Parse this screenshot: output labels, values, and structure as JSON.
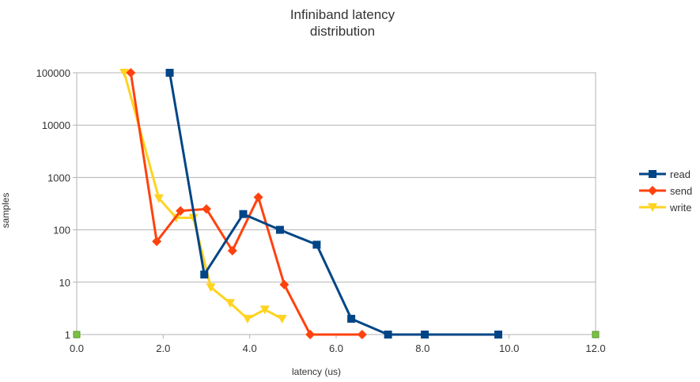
{
  "chart_data": {
    "type": "scatter",
    "title_lines": [
      "Infiniband latency",
      "distribution"
    ],
    "xlabel": "latency (us)",
    "ylabel": "samples",
    "xlim": [
      0,
      12
    ],
    "ylim": [
      1,
      100000
    ],
    "y_scale": "log",
    "grid": true,
    "legend_position": "right",
    "x_ticks": [
      "0.0",
      "2.0",
      "4.0",
      "6.0",
      "8.0",
      "10.0",
      "12.0"
    ],
    "y_ticks": [
      "1",
      "10",
      "100",
      "1000",
      "10000",
      "100000"
    ],
    "series": [
      {
        "name": "read",
        "color": "#004586",
        "marker": "square",
        "points": [
          [
            2.15,
            100000
          ],
          [
            2.95,
            14
          ],
          [
            3.85,
            200
          ],
          [
            4.7,
            100
          ],
          [
            5.55,
            52
          ],
          [
            6.35,
            2
          ],
          [
            7.2,
            1
          ],
          [
            8.05,
            1
          ],
          [
            9.75,
            1
          ]
        ]
      },
      {
        "name": "send",
        "color": "#ff420e",
        "marker": "diamond",
        "points": [
          [
            1.25,
            100000
          ],
          [
            1.85,
            60
          ],
          [
            2.4,
            230
          ],
          [
            3.0,
            250
          ],
          [
            3.6,
            40
          ],
          [
            4.2,
            420
          ],
          [
            4.8,
            9
          ],
          [
            5.4,
            1
          ],
          [
            6.6,
            1
          ]
        ]
      },
      {
        "name": "write",
        "color": "#ffd320",
        "marker": "triangle-down",
        "points": [
          [
            1.1,
            100000
          ],
          [
            1.9,
            400
          ],
          [
            2.3,
            170
          ],
          [
            2.7,
            170
          ],
          [
            3.1,
            8
          ],
          [
            3.55,
            4
          ],
          [
            3.95,
            2
          ],
          [
            4.35,
            3
          ],
          [
            4.75,
            2
          ]
        ]
      },
      {
        "name": "",
        "color": "#7ac142",
        "marker": "square-small",
        "points": [
          [
            0.0,
            1
          ],
          [
            12.0,
            1
          ]
        ]
      }
    ]
  }
}
